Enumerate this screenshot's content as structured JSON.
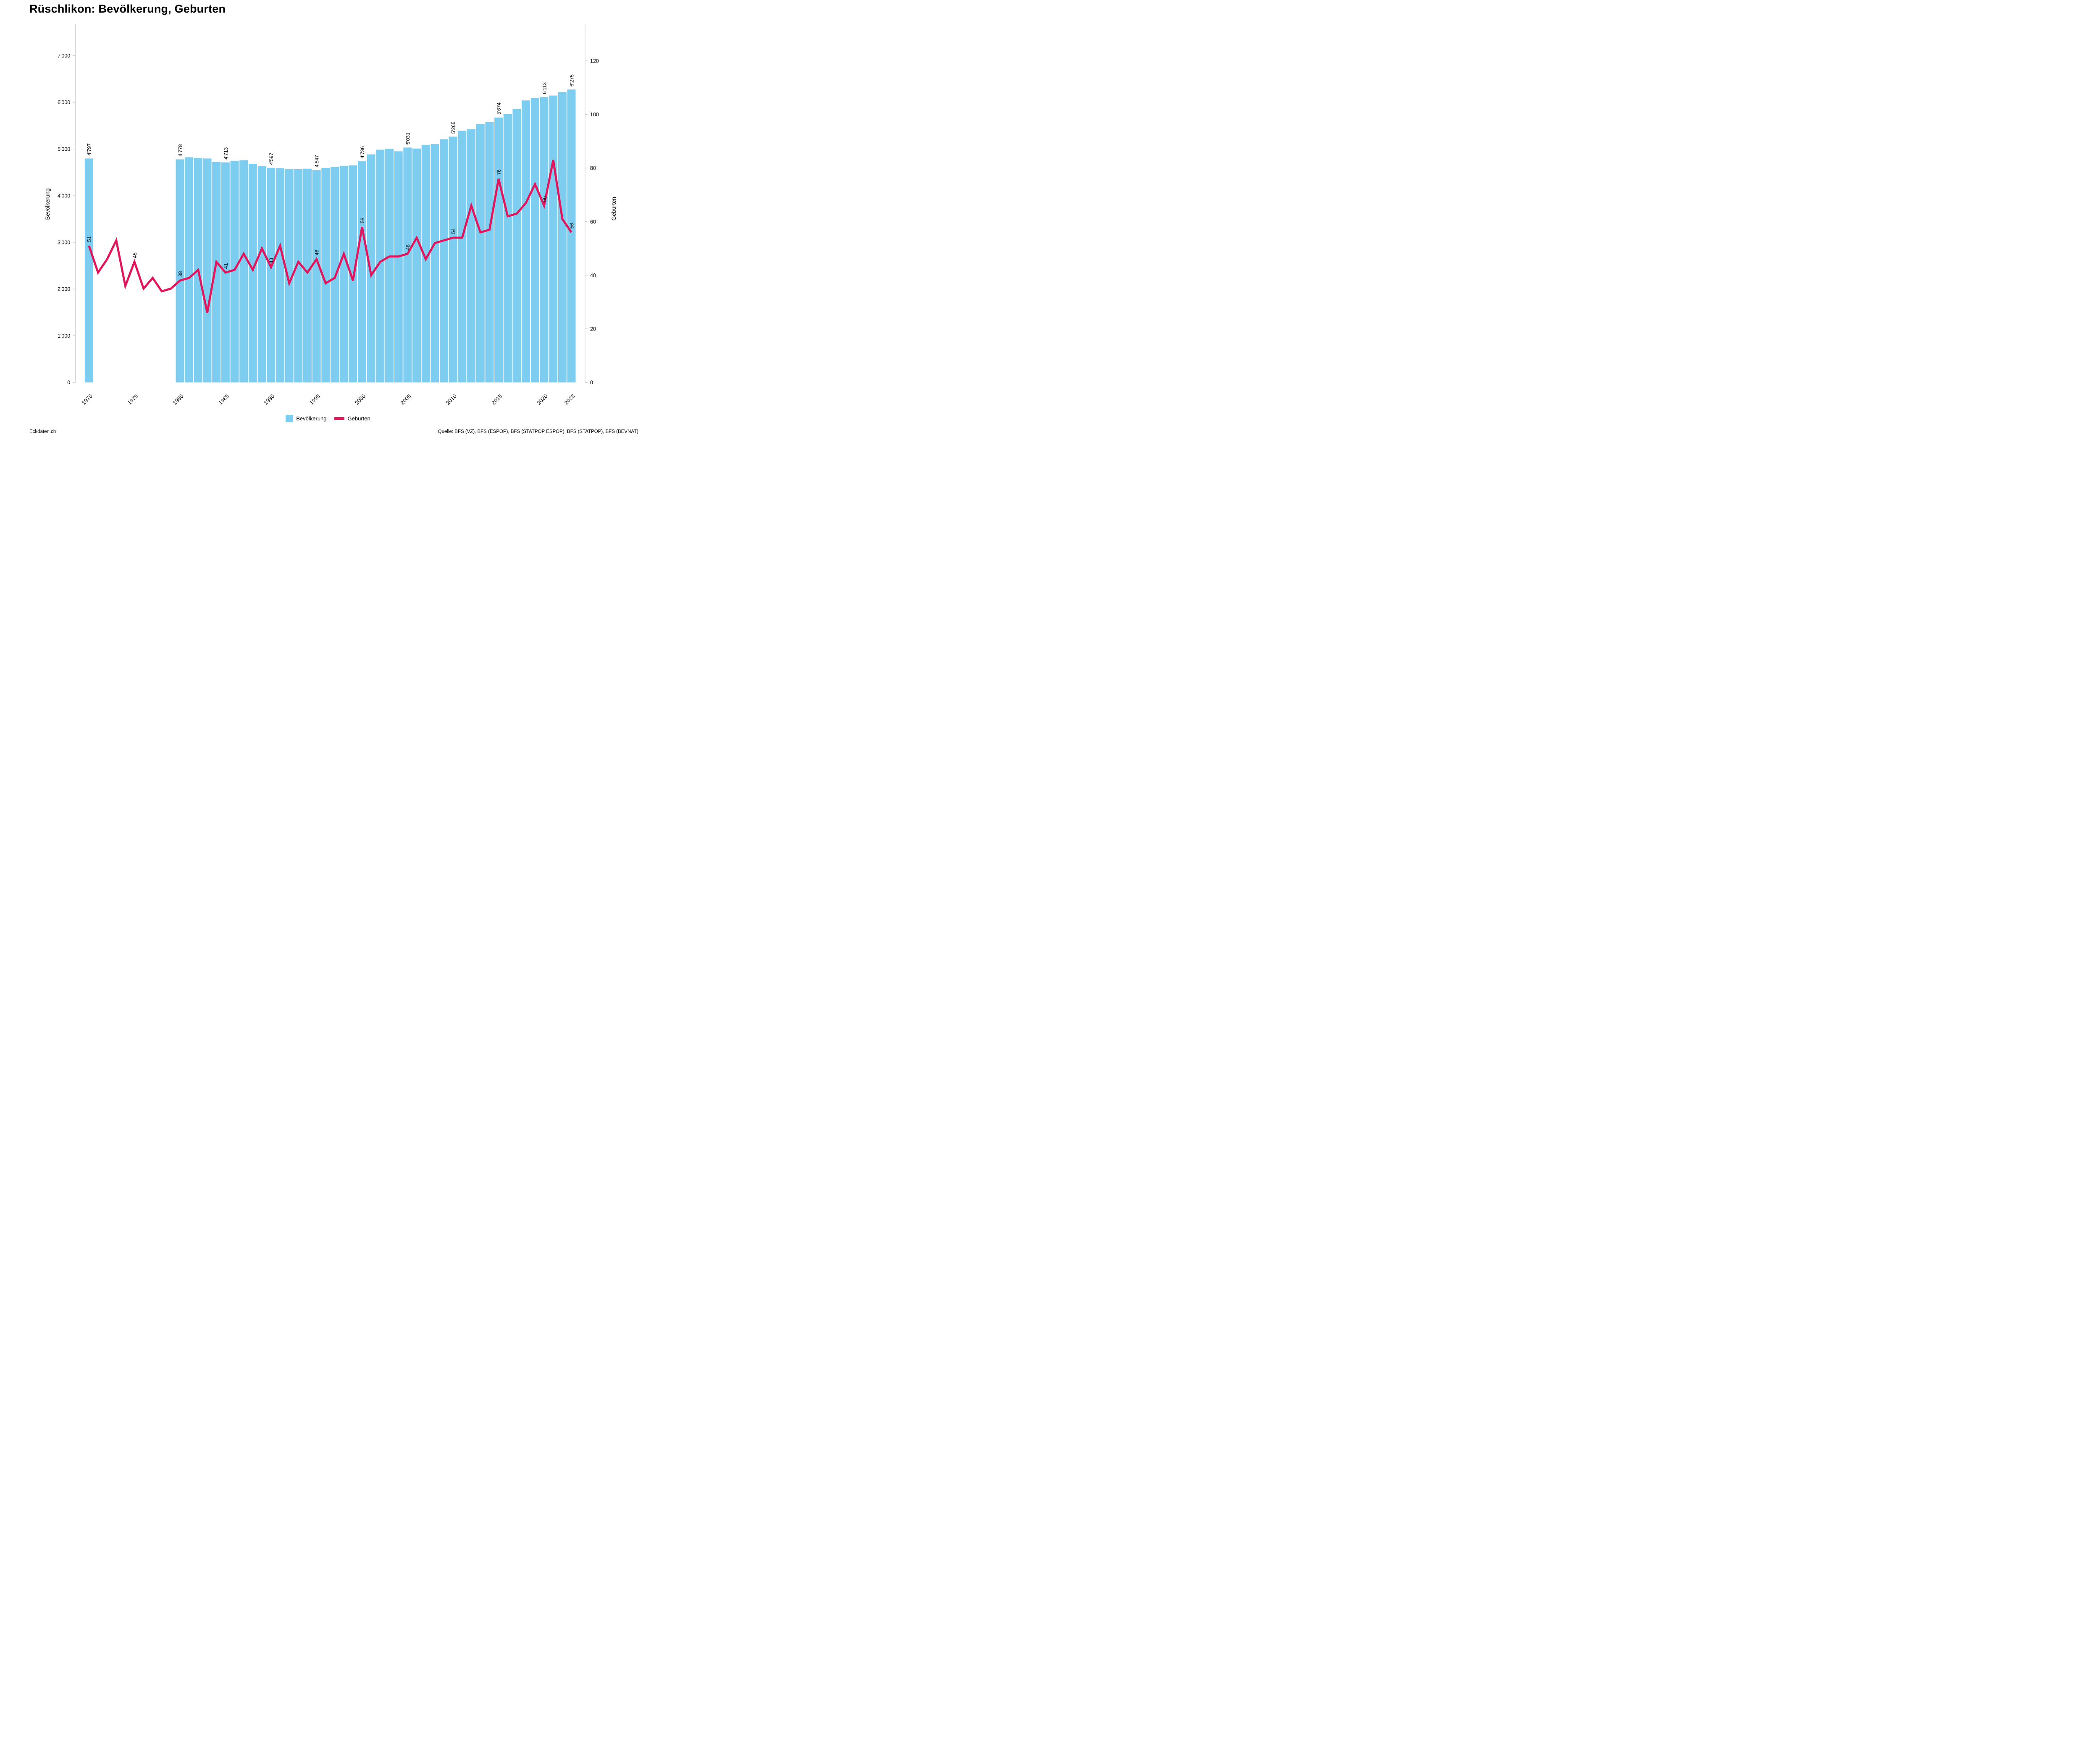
{
  "title": "Rüschlikon: Bevölkerung, Geburten",
  "footer": {
    "left": "Eckdaten.ch",
    "right": "Quelle: BFS (VZ), BFS (ESPOP), BFS (STATPOP ESPOP), BFS (STATPOP), BFS (BEVNAT)"
  },
  "legend": {
    "bevoelkerung": "Bevölkerung",
    "geburten": "Geburten"
  },
  "colors": {
    "bar": "#7DCDF0",
    "line": "#E2155C",
    "axis_line": "#C9C9C9",
    "text": "#000000",
    "background": "#FFFFFF"
  },
  "chart_data": {
    "type": "bar",
    "subtype": "bar+line dual axis",
    "x": [
      1970,
      1971,
      1972,
      1973,
      1974,
      1975,
      1976,
      1977,
      1978,
      1979,
      1980,
      1981,
      1982,
      1983,
      1984,
      1985,
      1986,
      1987,
      1988,
      1989,
      1990,
      1991,
      1992,
      1993,
      1994,
      1995,
      1996,
      1997,
      1998,
      1999,
      2000,
      2001,
      2002,
      2003,
      2004,
      2005,
      2006,
      2007,
      2008,
      2009,
      2010,
      2011,
      2012,
      2013,
      2014,
      2015,
      2016,
      2017,
      2018,
      2019,
      2020,
      2021,
      2022,
      2023
    ],
    "series": [
      {
        "name": "Bevölkerung",
        "type": "bar",
        "axis": "left",
        "values": [
          4797,
          null,
          null,
          null,
          null,
          null,
          null,
          null,
          null,
          null,
          4778,
          4823,
          4808,
          4797,
          4725,
          4713,
          4748,
          4759,
          4684,
          4631,
          4597,
          4590,
          4570,
          4566,
          4578,
          4547,
          4595,
          4617,
          4640,
          4650,
          4736,
          4885,
          4985,
          5005,
          4950,
          5031,
          5010,
          5090,
          5105,
          5210,
          5265,
          5392,
          5427,
          5535,
          5578,
          5674,
          5750,
          5855,
          6040,
          6090,
          6113,
          6145,
          6220,
          6275
        ]
      },
      {
        "name": "Geburten",
        "type": "line",
        "axis": "right",
        "values": [
          51,
          41,
          46,
          53,
          36,
          45,
          35,
          39,
          34,
          35,
          38,
          39,
          42,
          26,
          45,
          41,
          42,
          48,
          42,
          50,
          43,
          51,
          37,
          45,
          41,
          46,
          37,
          39,
          48,
          38,
          58,
          40,
          45,
          47,
          47,
          48,
          54,
          46,
          52,
          53,
          54,
          54,
          66,
          56,
          57,
          76,
          62,
          63,
          67,
          74,
          66,
          83,
          61,
          56
        ]
      }
    ],
    "bar_labels": {
      "1970": "4'797",
      "1980": "4'778",
      "1985": "4'713",
      "1990": "4'597",
      "1995": "4'547",
      "2000": "4'736",
      "2005": "5'031",
      "2010": "5'265",
      "2015": "5'674",
      "2020": "6'113",
      "2023": "6'275"
    },
    "line_labels": {
      "1970": "51",
      "1975": "45",
      "1980": "38",
      "1985": "41",
      "1990": "43",
      "1995": "46",
      "2000": "58",
      "2005": "48",
      "2010": "54",
      "2015": "76",
      "2020": "66",
      "2023": "56"
    },
    "left_axis": {
      "label": "Bevölkerung",
      "range": [
        0,
        7000
      ],
      "ticks": [
        {
          "value": 0,
          "label": "0"
        },
        {
          "value": 1000,
          "label": "1'000"
        },
        {
          "value": 2000,
          "label": "2'000"
        },
        {
          "value": 3000,
          "label": "3'000"
        },
        {
          "value": 4000,
          "label": "4'000"
        },
        {
          "value": 5000,
          "label": "5'000"
        },
        {
          "value": 6000,
          "label": "6'000"
        },
        {
          "value": 7000,
          "label": "7'000"
        }
      ]
    },
    "right_axis": {
      "label": "Geburten",
      "range": [
        0,
        120
      ],
      "ticks": [
        {
          "value": 0,
          "label": "0"
        },
        {
          "value": 20,
          "label": "20"
        },
        {
          "value": 40,
          "label": "40"
        },
        {
          "value": 60,
          "label": "60"
        },
        {
          "value": 80,
          "label": "80"
        },
        {
          "value": 100,
          "label": "100"
        },
        {
          "value": 120,
          "label": "120"
        }
      ]
    },
    "x_ticks": [
      1970,
      1975,
      1980,
      1985,
      1990,
      1995,
      2000,
      2005,
      2010,
      2015,
      2020,
      2023
    ],
    "grid": false,
    "legend_position": "bottom-center"
  }
}
